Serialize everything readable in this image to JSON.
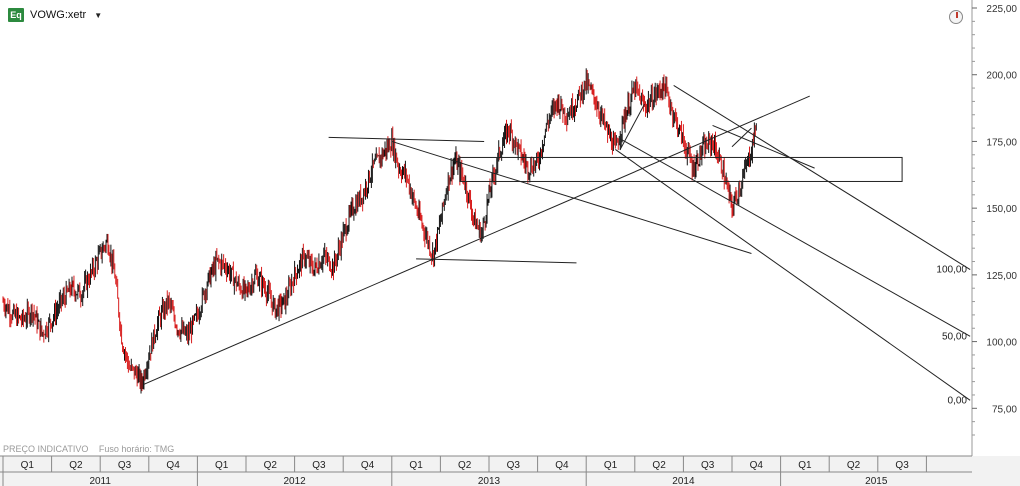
{
  "header": {
    "badge": "Eq",
    "symbol": "VOWG:xetr",
    "dropdown_icon": "caret-down-icon",
    "clock_icon": "clock-icon"
  },
  "footer": {
    "note_left": "PREÇO INDICATIVO",
    "note_right": "Fuso horário: TMG"
  },
  "colors": {
    "up_bar": "#111111",
    "down_bar": "#d81e1e",
    "line": "#222222",
    "grid": "#cccccc"
  },
  "chart_data": {
    "type": "line",
    "title": "",
    "xlabel": "",
    "ylabel": "",
    "yticks": [
      "225,00",
      "200,00",
      "175,00",
      "150,00",
      "125,00",
      "100,00",
      "75,00"
    ],
    "ylim": [
      62,
      228
    ],
    "quarters": [
      "Q1",
      "Q2",
      "Q3",
      "Q4",
      "Q1",
      "Q2",
      "Q3",
      "Q4",
      "Q1",
      "Q2",
      "Q3",
      "Q4",
      "Q1",
      "Q2",
      "Q3",
      "Q4",
      "Q1",
      "Q2",
      "Q3"
    ],
    "years": [
      "2011",
      "2012",
      "2013",
      "2014",
      "2015"
    ],
    "fib_labels": [
      "100,00",
      "50,00",
      "0,00"
    ],
    "price_series": {
      "name": "",
      "x_start": "2011-01",
      "points": [
        [
          0.0,
          115
        ],
        [
          0.2,
          110
        ],
        [
          0.4,
          108
        ],
        [
          0.6,
          112
        ],
        [
          0.8,
          103
        ],
        [
          1.0,
          108
        ],
        [
          1.2,
          115
        ],
        [
          1.4,
          120
        ],
        [
          1.6,
          118
        ],
        [
          1.8,
          125
        ],
        [
          2.0,
          133
        ],
        [
          2.15,
          138
        ],
        [
          2.3,
          125
        ],
        [
          2.45,
          100
        ],
        [
          2.6,
          90
        ],
        [
          2.75,
          88
        ],
        [
          2.85,
          84
        ],
        [
          3.0,
          95
        ],
        [
          3.2,
          108
        ],
        [
          3.4,
          115
        ],
        [
          3.6,
          105
        ],
        [
          3.8,
          102
        ],
        [
          4.0,
          110
        ],
        [
          4.2,
          122
        ],
        [
          4.4,
          130
        ],
        [
          4.6,
          128
        ],
        [
          4.8,
          122
        ],
        [
          5.0,
          118
        ],
        [
          5.2,
          125
        ],
        [
          5.4,
          120
        ],
        [
          5.6,
          112
        ],
        [
          5.8,
          115
        ],
        [
          6.0,
          125
        ],
        [
          6.2,
          132
        ],
        [
          6.4,
          127
        ],
        [
          6.6,
          132
        ],
        [
          6.8,
          128
        ],
        [
          7.0,
          140
        ],
        [
          7.2,
          150
        ],
        [
          7.4,
          155
        ],
        [
          7.6,
          165
        ],
        [
          7.8,
          170
        ],
        [
          8.0,
          175
        ],
        [
          8.15,
          165
        ],
        [
          8.3,
          162
        ],
        [
          8.5,
          150
        ],
        [
          8.7,
          140
        ],
        [
          8.85,
          132
        ],
        [
          9.0,
          145
        ],
        [
          9.15,
          160
        ],
        [
          9.3,
          168
        ],
        [
          9.5,
          160
        ],
        [
          9.7,
          145
        ],
        [
          9.85,
          140
        ],
        [
          10.0,
          155
        ],
        [
          10.2,
          170
        ],
        [
          10.4,
          180
        ],
        [
          10.6,
          172
        ],
        [
          10.8,
          165
        ],
        [
          11.0,
          167
        ],
        [
          11.2,
          182
        ],
        [
          11.4,
          190
        ],
        [
          11.6,
          185
        ],
        [
          11.8,
          190
        ],
        [
          12.0,
          197
        ],
        [
          12.2,
          190
        ],
        [
          12.4,
          180
        ],
        [
          12.6,
          172
        ],
        [
          12.8,
          185
        ],
        [
          13.0,
          195
        ],
        [
          13.2,
          188
        ],
        [
          13.4,
          192
        ],
        [
          13.6,
          196
        ],
        [
          13.8,
          185
        ],
        [
          14.0,
          175
        ],
        [
          14.2,
          165
        ],
        [
          14.4,
          172
        ],
        [
          14.6,
          175
        ],
        [
          14.8,
          165
        ],
        [
          15.0,
          150
        ],
        [
          15.2,
          160
        ],
        [
          15.4,
          172
        ],
        [
          15.5,
          182
        ]
      ]
    },
    "drawings": {
      "support_line": [
        [
          2.9,
          84
        ],
        [
          16.6,
          192
        ]
      ],
      "upper_channel": [
        [
          13.8,
          196
        ],
        [
          19.9,
          127
        ]
      ],
      "middle_channel": [
        [
          12.7,
          176
        ],
        [
          19.9,
          102
        ]
      ],
      "lower_channel": [
        [
          12.6,
          172
        ],
        [
          19.9,
          78
        ]
      ],
      "trend_2012": [
        [
          8.0,
          175
        ],
        [
          15.4,
          133
        ]
      ],
      "top_horizontal": [
        [
          6.7,
          176.5
        ],
        [
          9.9,
          175
        ]
      ],
      "bottom_horizontal": [
        [
          8.5,
          131
        ],
        [
          11.8,
          129.5
        ]
      ],
      "rectangle": [
        [
          9.4,
          160
        ],
        [
          18.5,
          169
        ]
      ],
      "small_line_a": [
        [
          12.7,
          172
        ],
        [
          13.2,
          189
        ]
      ],
      "small_line_b": [
        [
          14.6,
          181
        ],
        [
          16.7,
          165
        ]
      ],
      "small_line_c": [
        [
          15.0,
          173
        ],
        [
          15.4,
          180
        ]
      ]
    }
  }
}
